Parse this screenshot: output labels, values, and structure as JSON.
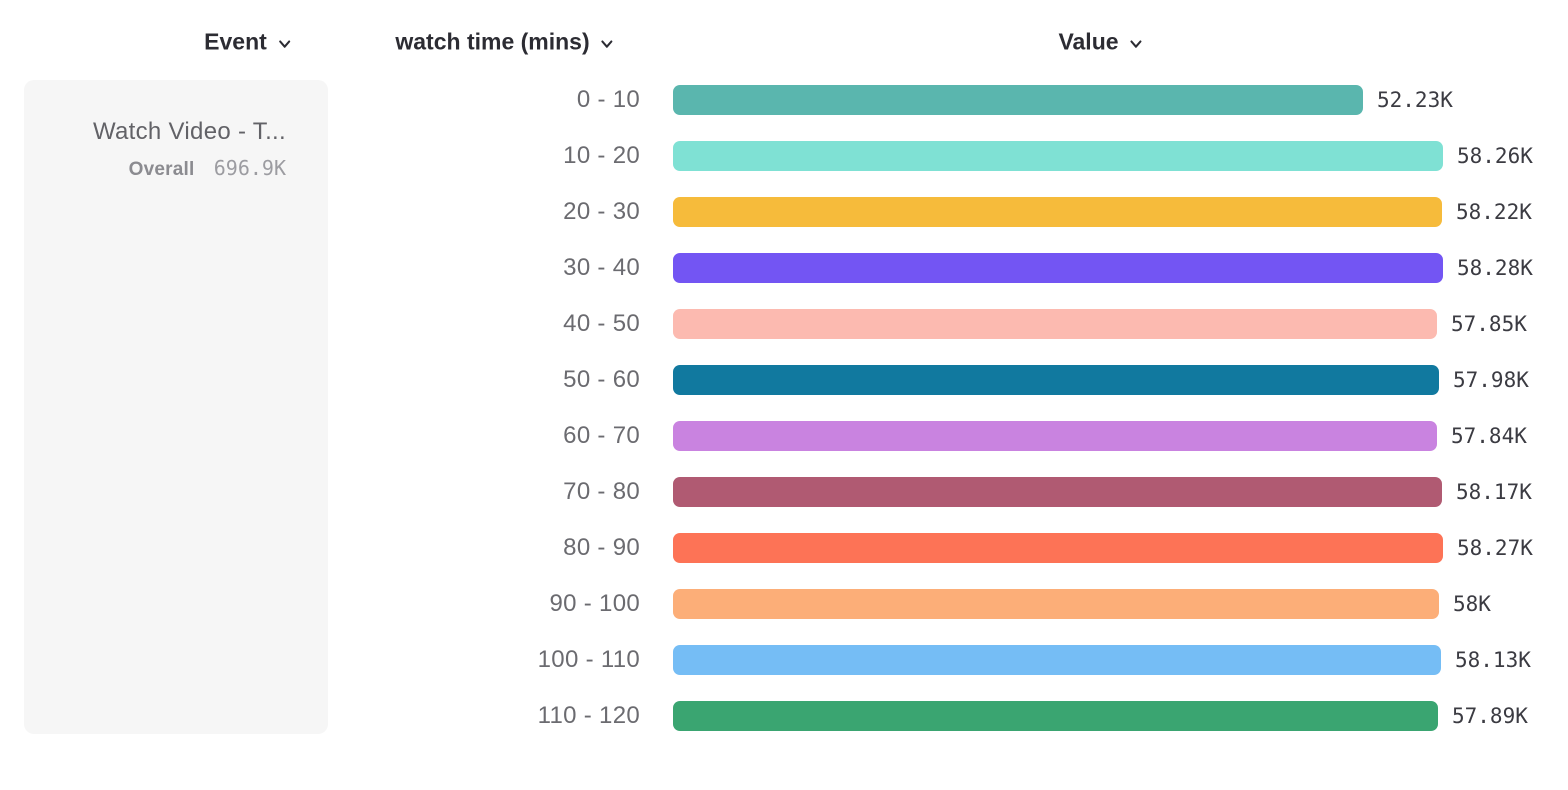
{
  "header": {
    "columns": [
      {
        "label": "Event"
      },
      {
        "label": "watch time (mins)"
      },
      {
        "label": "Value"
      }
    ]
  },
  "event_card": {
    "title": "Watch Video - T...",
    "overall_label": "Overall",
    "overall_value": "696.9K"
  },
  "chart_data": {
    "type": "bar",
    "orientation": "horizontal",
    "title": "",
    "xlabel": "Value",
    "ylabel": "watch time (mins)",
    "categories": [
      "0 - 10",
      "10 - 20",
      "20 - 30",
      "30 - 40",
      "40 - 50",
      "50 - 60",
      "60 - 70",
      "70 - 80",
      "80 - 90",
      "90 - 100",
      "100 - 110",
      "110 - 120"
    ],
    "values": [
      52230,
      58260,
      58220,
      58280,
      57850,
      57980,
      57840,
      58170,
      58270,
      58000,
      58130,
      57890
    ],
    "value_labels": [
      "52.23K",
      "58.26K",
      "58.22K",
      "58.28K",
      "57.85K",
      "57.98K",
      "57.84K",
      "58.17K",
      "58.27K",
      "58K",
      "58.13K",
      "57.89K"
    ],
    "colors": [
      "#5ab6ae",
      "#7fe1d4",
      "#f6bb3b",
      "#7355f3",
      "#fcbab0",
      "#11799f",
      "#c983e0",
      "#b05a72",
      "#fd7356",
      "#fcae78",
      "#75bdf5",
      "#3aa571"
    ],
    "xlim": [
      0,
      58280
    ],
    "grid": false,
    "legend": "none",
    "overall_total": "696.9K"
  },
  "colors": {
    "header_text": "#2c2c33",
    "bucket_label": "#6b6b70",
    "value_label": "#3b3b42",
    "card_bg": "#f6f6f6",
    "card_title": "#626267",
    "card_overall_label": "#8b8b90",
    "card_overall_value": "#9c9ca1"
  },
  "icons": {
    "chevron_down": "v"
  }
}
